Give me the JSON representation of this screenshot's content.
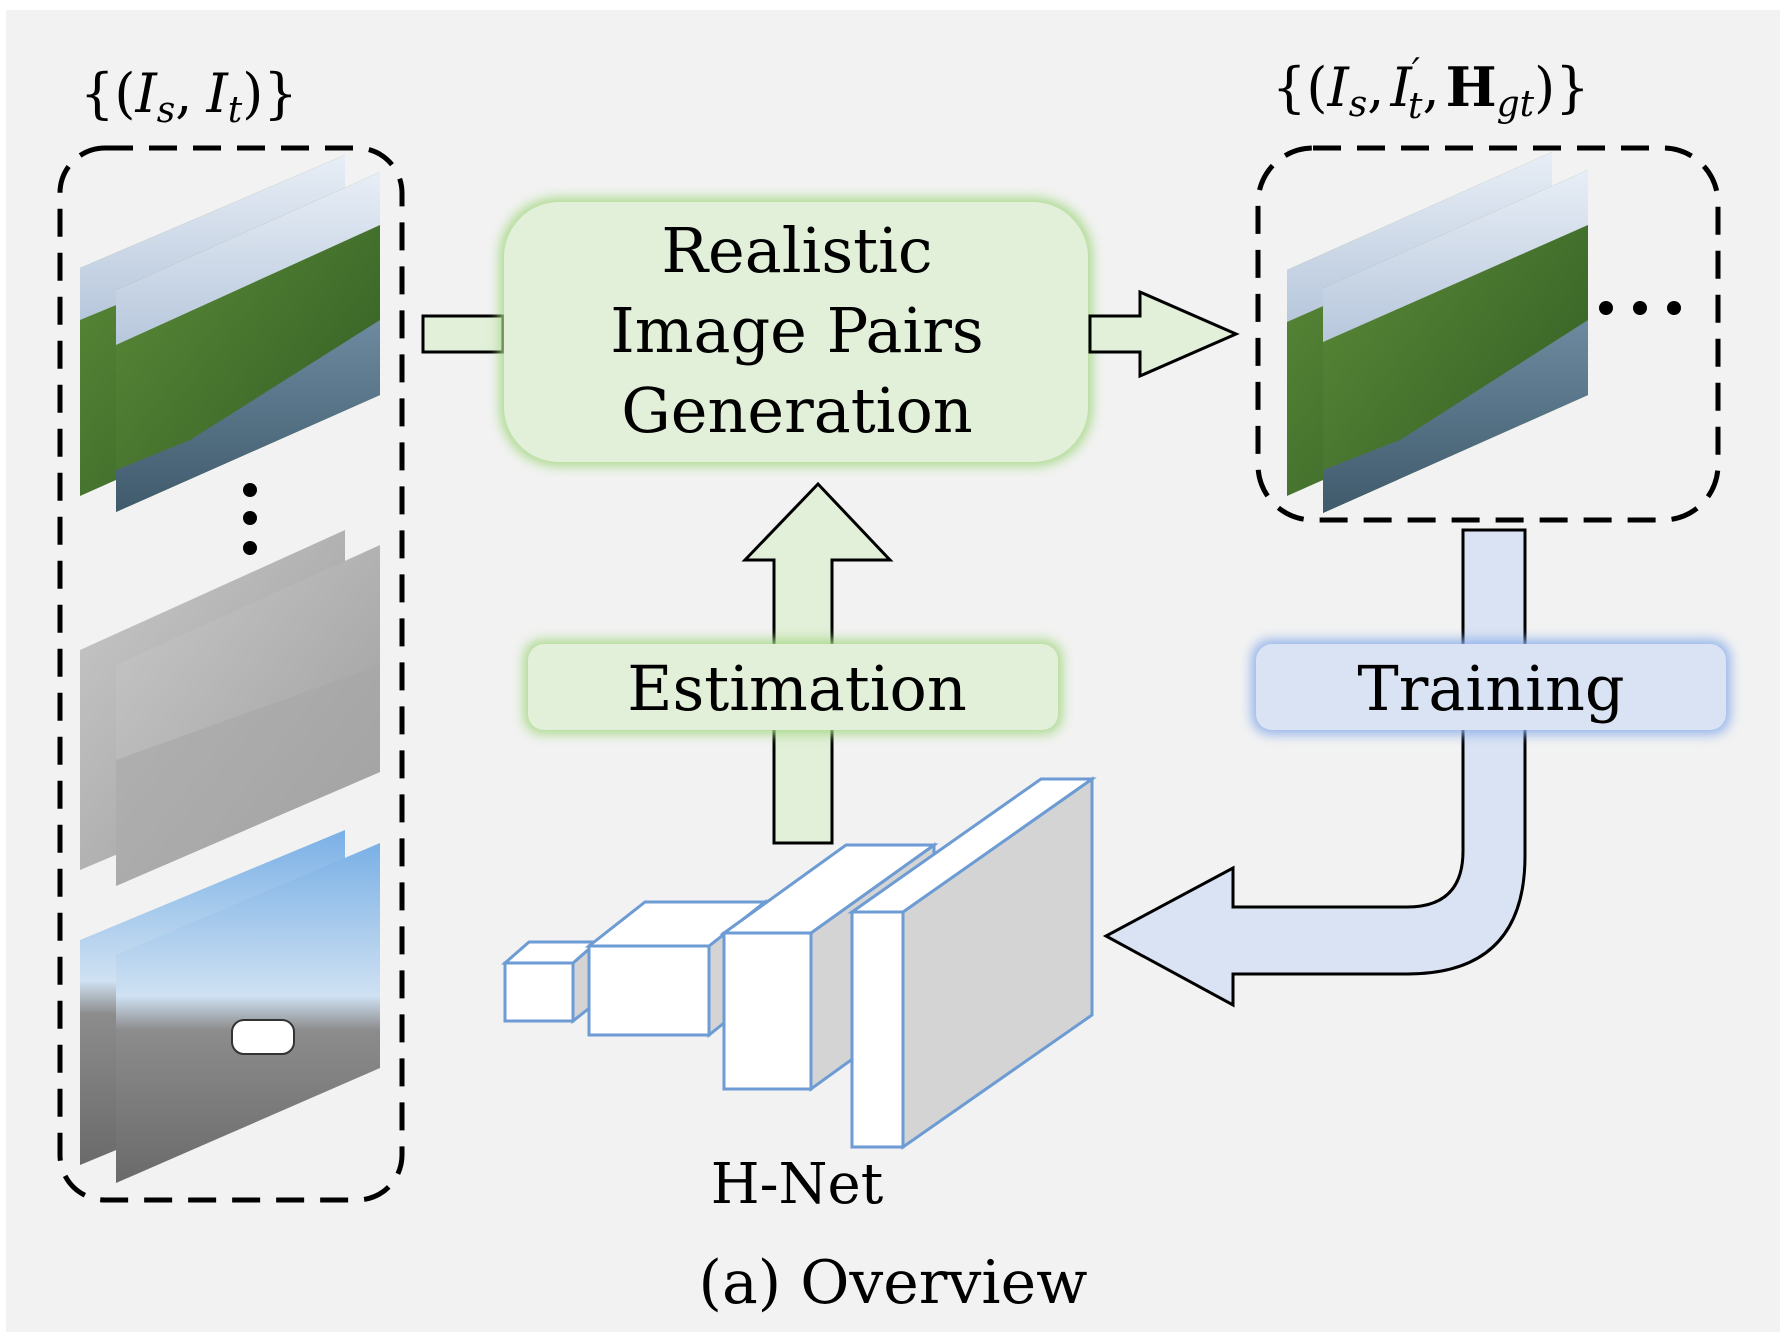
{
  "input_set": {
    "open": "{(",
    "var1": "I",
    "var1_sub": "s",
    "sep": ",",
    "var2": "I",
    "var2_sub": "t",
    "close": ")}"
  },
  "output_set": {
    "open": "{(",
    "var1": "I",
    "var1_sub": "s",
    "sep1": ",",
    "var2": "I",
    "var2_sub": "t",
    "var2_prime": "′",
    "sep2": ",",
    "var3": "H",
    "var3_sub": "gt",
    "close": ")}"
  },
  "generation_box": {
    "line1": "Realistic",
    "line2": "Image Pairs",
    "line3": "Generation"
  },
  "estimation_label": "Estimation",
  "training_label": "Training",
  "network_label": "H-Net",
  "caption": "(a) Overview",
  "colors": {
    "background": "#f2f2f2",
    "green_fill": "#e2efd9",
    "green_glow": "#a9d98a",
    "blue_fill": "#dae3f3",
    "blue_glow": "#8fb0ea",
    "net_stroke": "#6d9bd4",
    "net_shade": "#d4d4d4",
    "ink": "#000000"
  },
  "icons": {
    "dots_vertical": "vertical-ellipsis-icon",
    "dots_horizontal": "horizontal-ellipsis-icon"
  }
}
